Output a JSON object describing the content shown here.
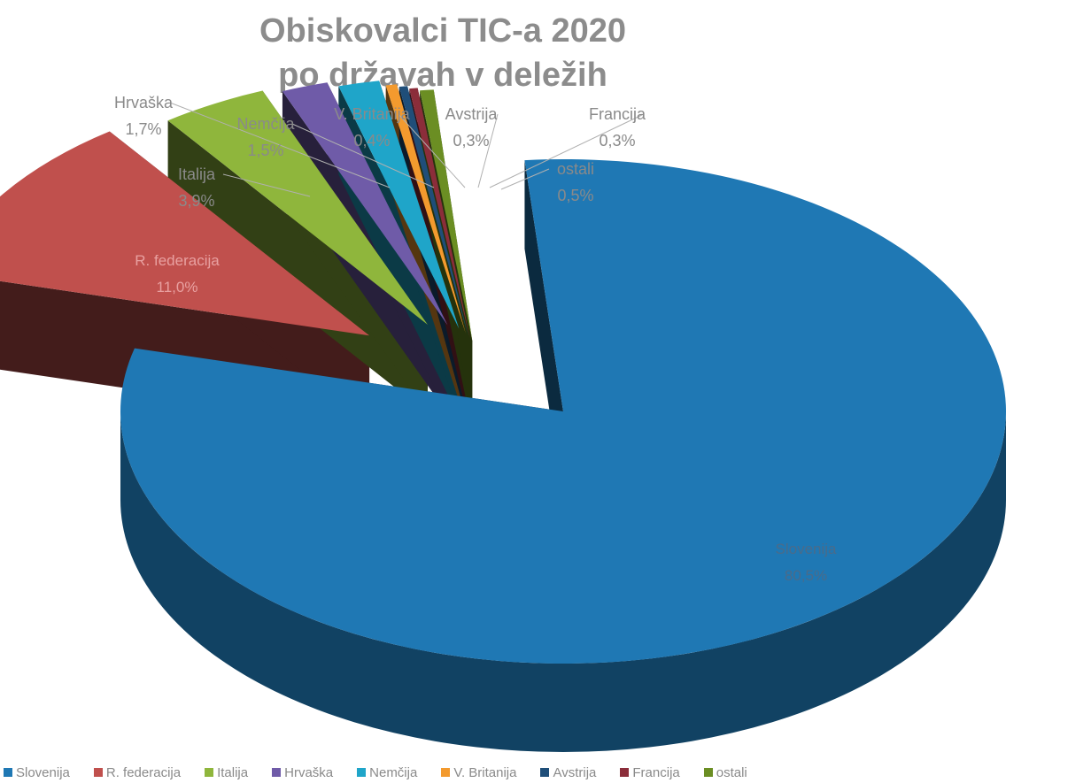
{
  "title": {
    "line1": "Obiskovalci TIC-a 2020",
    "line2": "po državah v deležih"
  },
  "chart_data": {
    "type": "pie",
    "title": "Obiskovalci TIC-a 2020 po državah v deležih",
    "style": "3d-exploded",
    "legend_position": "bottom",
    "slices": [
      {
        "name": "Slovenija",
        "value": 80.5,
        "label": "80,5%",
        "color": "#1f78b4"
      },
      {
        "name": "R. federacija",
        "value": 11.0,
        "label": "11,0%",
        "color": "#c0504d"
      },
      {
        "name": "Italija",
        "value": 3.9,
        "label": "3,9%",
        "color": "#8fb63c"
      },
      {
        "name": "Hrvaška",
        "value": 1.7,
        "label": "1,7%",
        "color": "#6f5ba8"
      },
      {
        "name": "Nemčija",
        "value": 1.5,
        "label": "1,5%",
        "color": "#1fa5c9"
      },
      {
        "name": "V. Britanija",
        "value": 0.4,
        "label": "0,4%",
        "color": "#f39a2e"
      },
      {
        "name": "Avstrija",
        "value": 0.3,
        "label": "0,3%",
        "color": "#1f4e79"
      },
      {
        "name": "Francija",
        "value": 0.3,
        "label": "0,3%",
        "color": "#8b2d3a"
      },
      {
        "name": "ostali",
        "value": 0.5,
        "label": "0,5%",
        "color": "#6b8e23"
      }
    ]
  }
}
